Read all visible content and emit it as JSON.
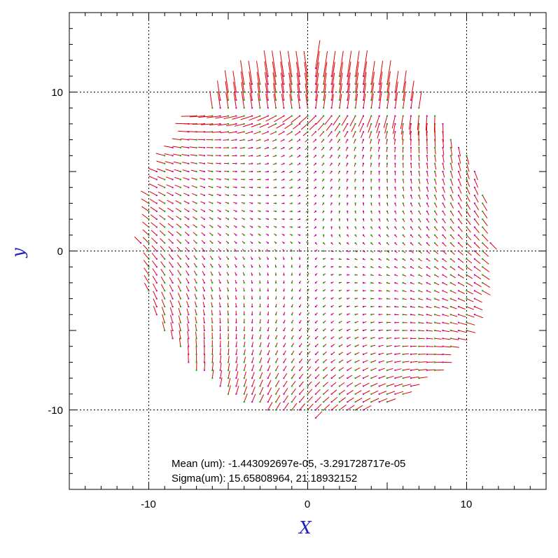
{
  "chart_data": {
    "type": "scatter",
    "subtype": "vector-field",
    "xlabel": "X",
    "ylabel": "y",
    "xlim": [
      -15,
      15
    ],
    "ylim": [
      -15,
      15
    ],
    "x_ticks": [
      -10,
      0,
      10
    ],
    "y_ticks": [
      -10,
      0,
      10
    ],
    "x_tick_labels": [
      "-10",
      "0",
      "10"
    ],
    "y_tick_labels": [
      "-10",
      "0",
      "10"
    ],
    "grid": "dotted at -10, 0, 10",
    "field_region": "disk",
    "field_center": [
      0.5,
      0.5
    ],
    "field_radius": 11,
    "grid_spacing": 0.5,
    "stats_lines": [
      "Mean (um): -1.443092697e-05, -3.291728717e-05",
      "Sigma(um): 15.65808964, 21.18932152"
    ],
    "colors": {
      "vector": "#e00000",
      "point_primary": "#00b000",
      "point_secondary": "#c000c0",
      "axis_label": "#1f1fbf",
      "grid": "#000000"
    }
  }
}
